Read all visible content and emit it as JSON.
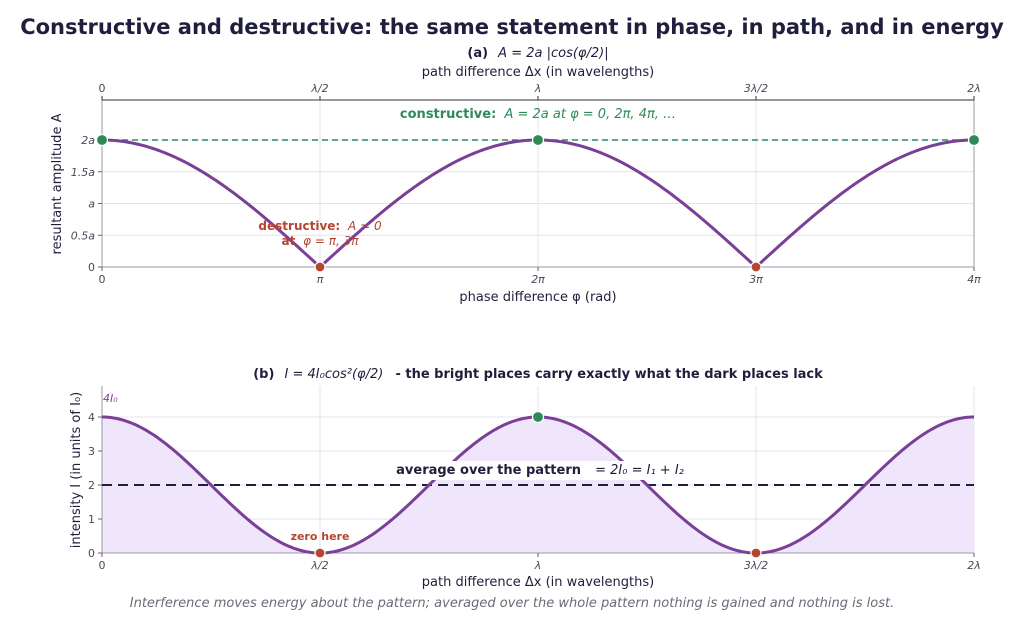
{
  "title": "Constructive and destructive:  the same statement in phase, in path, and in energy",
  "caption": "Interference moves energy about the pattern; averaged over the whole pattern nothing is gained and nothing is lost.",
  "colors": {
    "curve": "#7a3f97",
    "constructive": "#2e8b57",
    "destructive": "#b5452f",
    "fill": "#efe6fb",
    "average": "#1f1f3d"
  },
  "chart_data": [
    {
      "type": "line",
      "panel_label": "(a)",
      "title_formula": "A = 2a |cos(φ/2)|",
      "xlabel": "phase difference  φ  (rad)",
      "x_ticks": [
        "0",
        "π",
        "2π",
        "3π",
        "4π"
      ],
      "top_axis_label": "path difference  Δx  (in wavelengths)",
      "top_ticks": [
        "0",
        "λ/2",
        "λ",
        "3λ/2",
        "2λ"
      ],
      "ylabel": "resultant amplitude  A",
      "y_ticks": [
        "0",
        "0.5a",
        "a",
        "1.5a",
        "2a"
      ],
      "xlim": [
        0,
        4
      ],
      "ylim": [
        0,
        2
      ],
      "x_units": "π rad",
      "y_units": "a",
      "grid": true,
      "series": [
        {
          "function": "2|cos(πx/2)|",
          "x": [
            0,
            0.5,
            1,
            1.5,
            2,
            2.5,
            3,
            3.5,
            4
          ],
          "values": [
            2,
            1.414,
            0,
            1.414,
            2,
            1.414,
            0,
            1.414,
            2
          ]
        }
      ],
      "reference_line": {
        "y": 2,
        "style": "dashed",
        "color": "#2e8b57"
      },
      "constructive_points": [
        0,
        2,
        4
      ],
      "destructive_points": [
        1,
        3
      ],
      "annotations": {
        "constructive_bold": "constructive:",
        "constructive_rest": "A = 2a  at  φ = 0,  2π,  4π,  …",
        "destructive_bold": "destructive:",
        "destructive_rest": "A = 0",
        "destructive_line2_bold": "at",
        "destructive_line2_rest": "φ = π,  3π"
      }
    },
    {
      "type": "area",
      "panel_label": "(b)",
      "title_formula": "I = 4I₀cos²(φ/2)",
      "title_tail": "-   the bright places carry exactly what the dark places lack",
      "xlabel": "path difference  Δx  (in wavelengths)",
      "x_ticks": [
        "0",
        "λ/2",
        "λ",
        "3λ/2",
        "2λ"
      ],
      "ylabel": "intensity  I  (in units of I₀)",
      "y_ticks": [
        "0",
        "1",
        "2",
        "3",
        "4"
      ],
      "xlim": [
        0,
        2
      ],
      "ylim": [
        0,
        4
      ],
      "grid": true,
      "series": [
        {
          "function": "4cos²(πx)",
          "x": [
            0,
            0.25,
            0.5,
            0.75,
            1,
            1.25,
            1.5,
            1.75,
            2
          ],
          "values": [
            4,
            2,
            0,
            2,
            4,
            2,
            0,
            2,
            4
          ]
        }
      ],
      "average_line": {
        "y": 2,
        "style": "dashed"
      },
      "max_points": [
        1
      ],
      "zero_points": [
        0.5,
        1.5
      ],
      "annotations": {
        "max_label": "4I₀",
        "average_bold": "average over the pattern",
        "average_rest": "= 2I₀ = I₁ + I₂",
        "zero_label": "zero here"
      }
    }
  ]
}
